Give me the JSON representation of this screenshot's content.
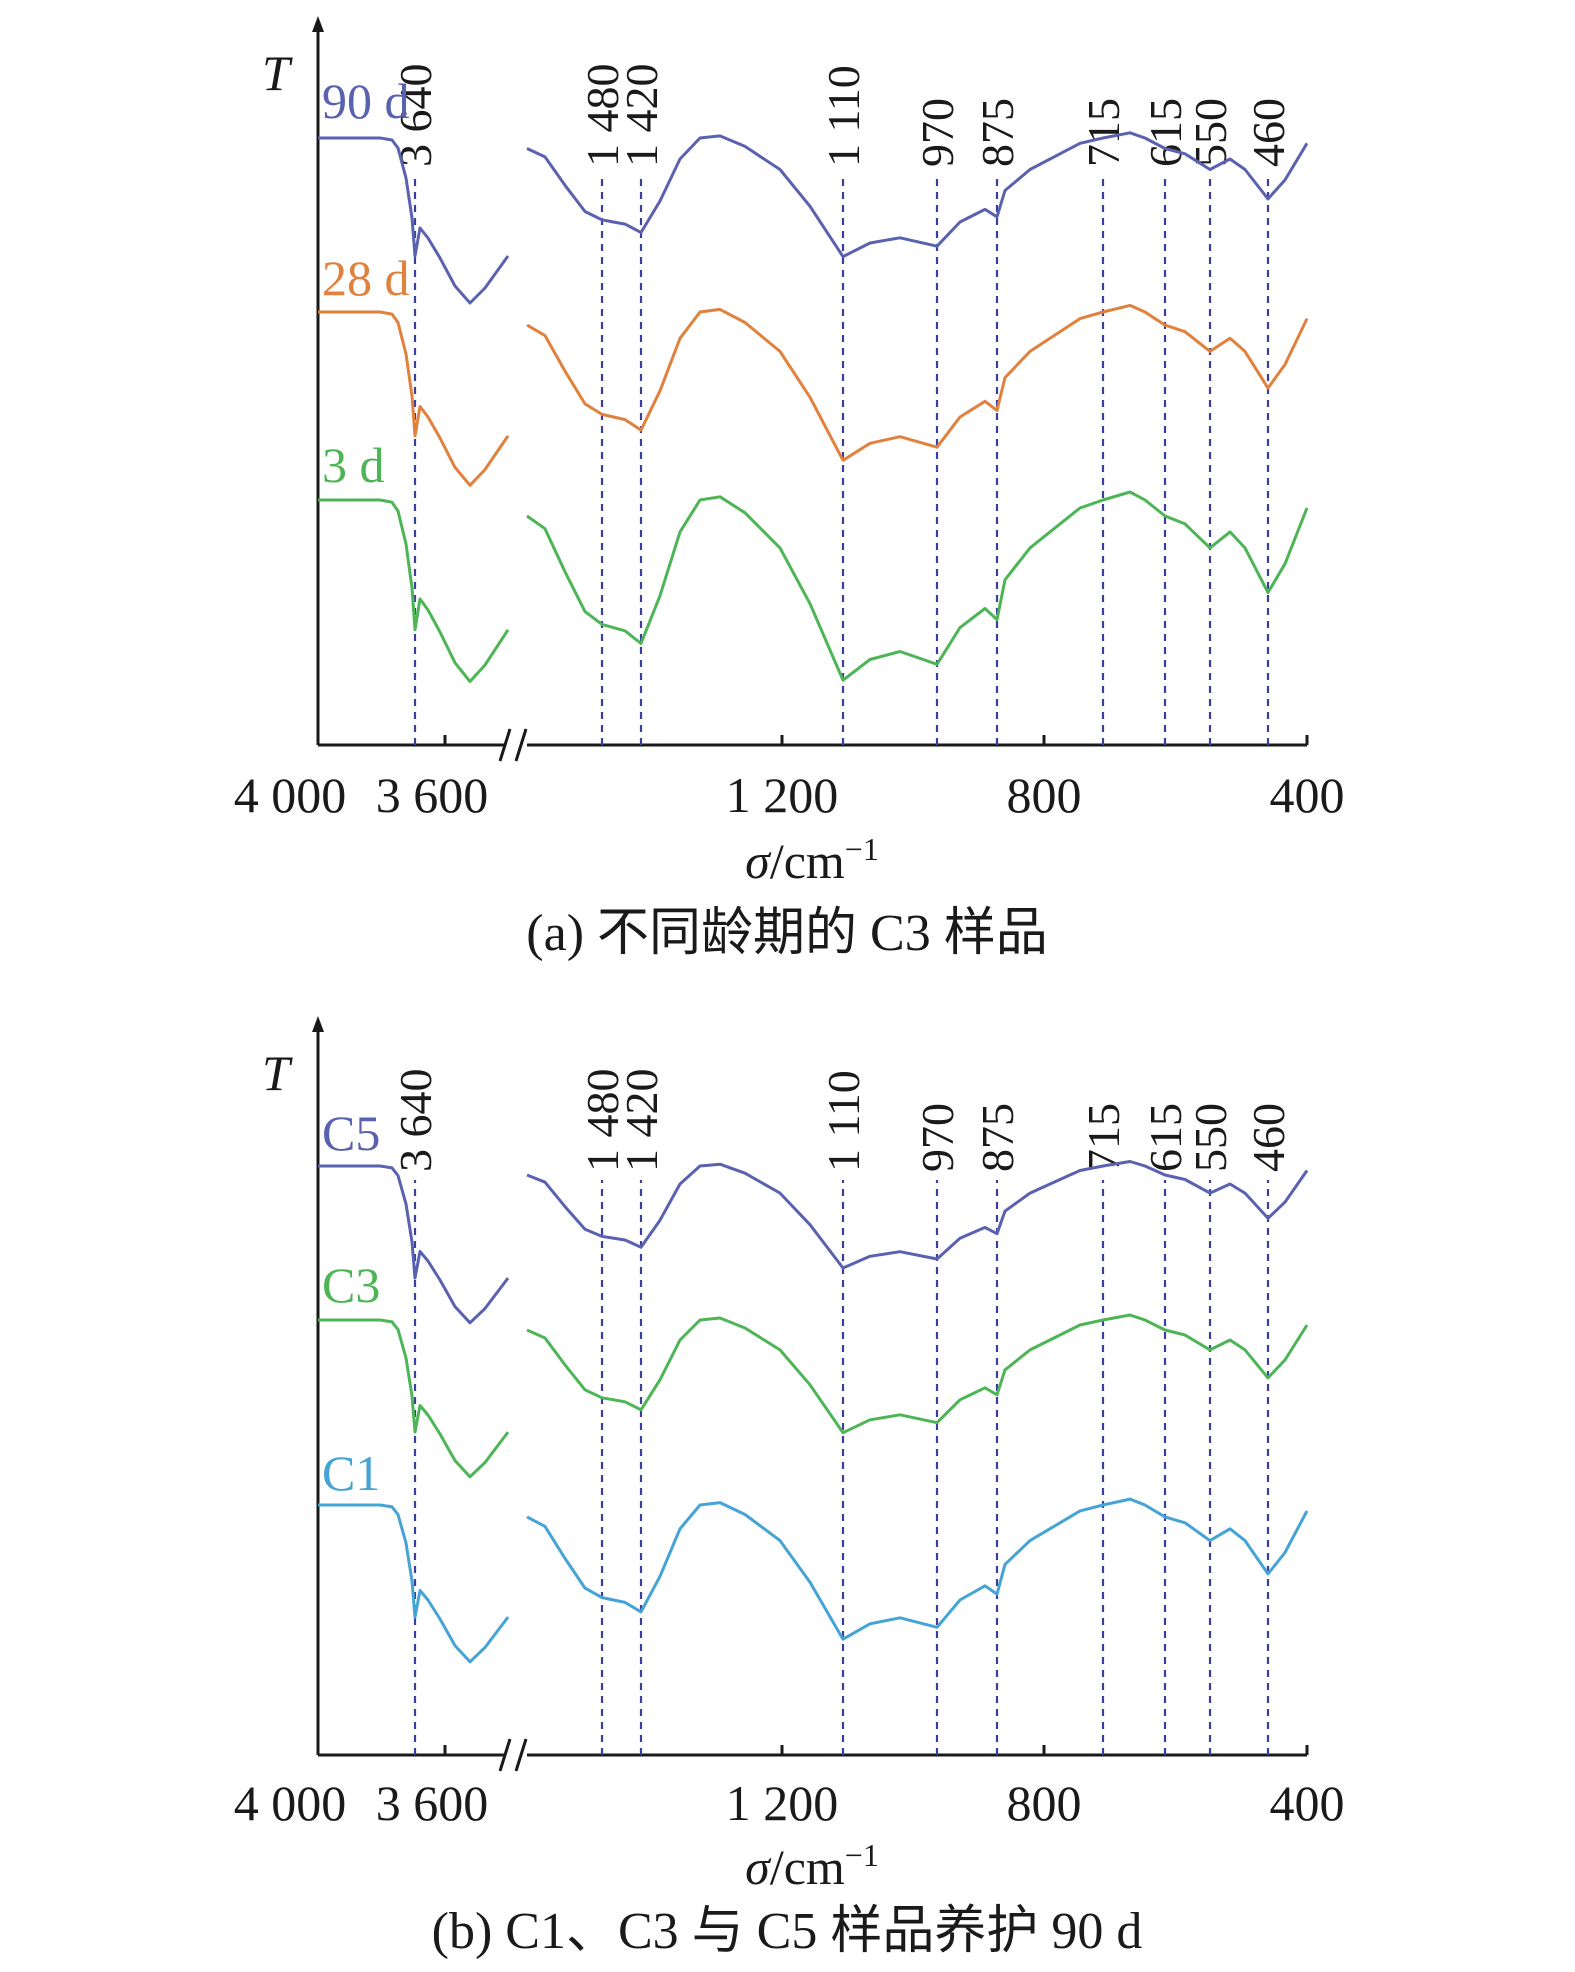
{
  "chart_data": [
    {
      "type": "line",
      "panel": "a",
      "ylabel": "T",
      "xlabel_main": "σ",
      "xlabel_unit": "/cm",
      "xlabel_sup": "−1",
      "caption": "(a) 不同龄期的 C3 样品",
      "xticks": [
        "4 000",
        "3 600",
        "1 200",
        "800",
        "400"
      ],
      "peaks": [
        "3 640",
        "1 480",
        "1 420",
        "1 110",
        "970",
        "875",
        "715",
        "615",
        "550",
        "460"
      ],
      "series": [
        {
          "name": "90 d",
          "color": "#5a62b0"
        },
        {
          "name": "28 d",
          "color": "#e0813e"
        },
        {
          "name": "3 d",
          "color": "#4db556"
        }
      ]
    },
    {
      "type": "line",
      "panel": "b",
      "ylabel": "T",
      "xlabel_main": "σ",
      "xlabel_unit": "/cm",
      "xlabel_sup": "−1",
      "caption": "(b) C1、C3 与 C5 样品养护 90 d",
      "xticks": [
        "4 000",
        "3 600",
        "1 200",
        "800",
        "400"
      ],
      "peaks": [
        "3 640",
        "1 480",
        "1 420",
        "1 110",
        "970",
        "875",
        "715",
        "615",
        "550",
        "460"
      ],
      "series": [
        {
          "name": "C5",
          "color": "#5a62b0"
        },
        {
          "name": "C3",
          "color": "#4db556"
        },
        {
          "name": "C1",
          "color": "#45a3d6"
        }
      ]
    }
  ]
}
